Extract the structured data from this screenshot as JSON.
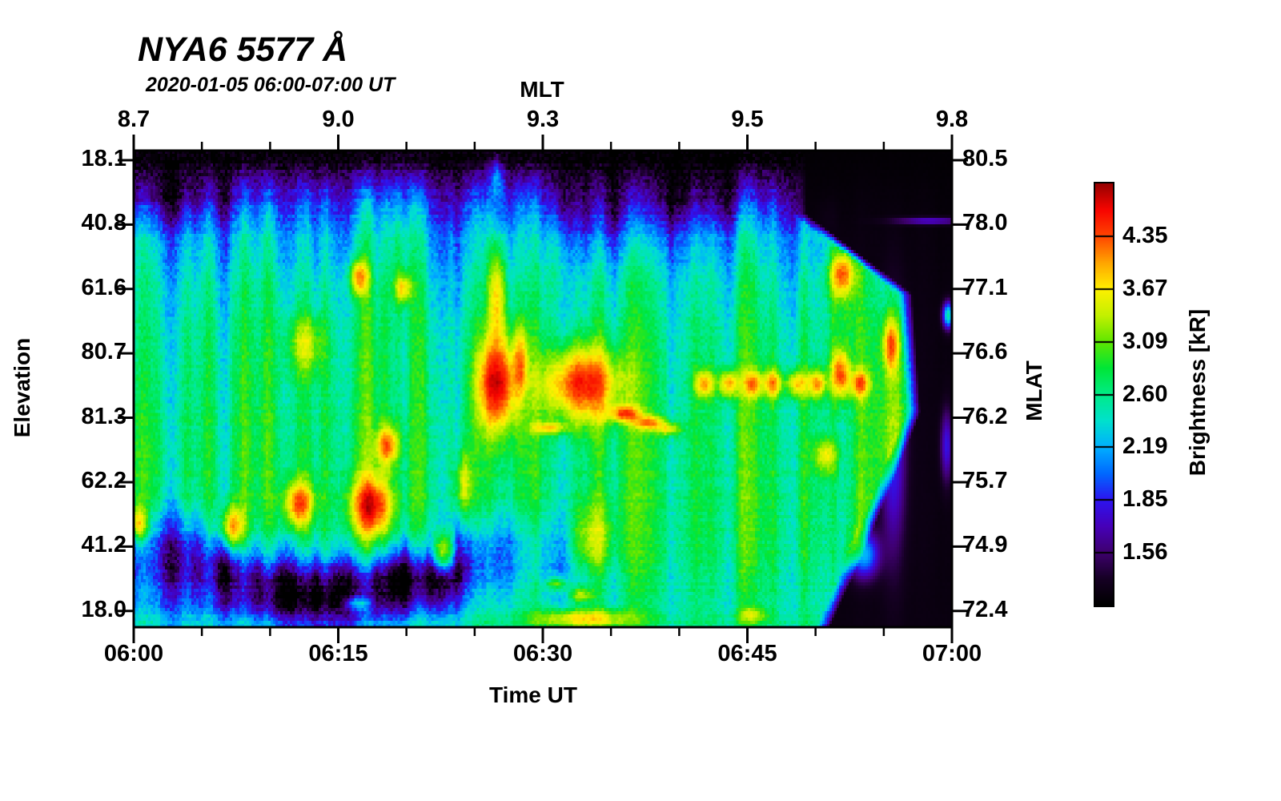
{
  "title": "NYA6 5577 Å",
  "subtitle": "2020-01-05 06:00-07:00 UT",
  "axes": {
    "top": {
      "label": "MLT",
      "major": [
        {
          "f": 0,
          "t": "8.7"
        },
        {
          "f": 0.25,
          "t": "9.0"
        },
        {
          "f": 0.5,
          "t": "9.3"
        },
        {
          "f": 0.75,
          "t": "9.5"
        },
        {
          "f": 1,
          "t": "9.8"
        }
      ],
      "minor": [
        0.0833,
        0.1667,
        0.3333,
        0.4167,
        0.5833,
        0.6667,
        0.8333,
        0.9167
      ]
    },
    "bottom": {
      "label": "Time UT",
      "major": [
        {
          "f": 0,
          "t": "06:00"
        },
        {
          "f": 0.25,
          "t": "06:15"
        },
        {
          "f": 0.5,
          "t": "06:30"
        },
        {
          "f": 0.75,
          "t": "06:45"
        },
        {
          "f": 1,
          "t": "07:00"
        }
      ],
      "minor": [
        0.0833,
        0.1667,
        0.3333,
        0.4167,
        0.5833,
        0.6667,
        0.8333,
        0.9167
      ]
    },
    "left": {
      "label": "Elevation",
      "major": [
        {
          "f": 0.0202,
          "t": "18.1"
        },
        {
          "f": 0.1553,
          "t": "40.8"
        },
        {
          "f": 0.2904,
          "t": "61.6"
        },
        {
          "f": 0.4255,
          "t": "80.7"
        },
        {
          "f": 0.5606,
          "t": "81.3"
        },
        {
          "f": 0.6957,
          "t": "62.2"
        },
        {
          "f": 0.8308,
          "t": "41.2"
        },
        {
          "f": 0.9659,
          "t": "18.0"
        }
      ]
    },
    "right": {
      "label": "MLAT",
      "major": [
        {
          "f": 0.0202,
          "t": "80.5"
        },
        {
          "f": 0.1553,
          "t": "78.0"
        },
        {
          "f": 0.2904,
          "t": "77.1"
        },
        {
          "f": 0.4255,
          "t": "76.6"
        },
        {
          "f": 0.5606,
          "t": "76.2"
        },
        {
          "f": 0.6957,
          "t": "75.7"
        },
        {
          "f": 0.8308,
          "t": "74.9"
        },
        {
          "f": 0.9659,
          "t": "72.4"
        }
      ]
    }
  },
  "colorbar": {
    "label": "Brightness [kR]",
    "ticks": [
      "4.35",
      "3.67",
      "3.09",
      "2.60",
      "2.19",
      "1.85",
      "1.56"
    ],
    "scale": "log"
  },
  "chart_data": {
    "type": "heatmap",
    "title": "NYA6 5577 Å",
    "subtitle": "2020-01-05 06:00-07:00 UT",
    "x_axis": {
      "label": "Time UT",
      "ticks": [
        "06:00",
        "06:15",
        "06:30",
        "06:45",
        "07:00"
      ],
      "mlt_ticks": [
        "8.7",
        "9.0",
        "9.3",
        "9.5",
        "9.8"
      ]
    },
    "y_axis": {
      "left_label": "Elevation",
      "left_ticks": [
        18.1,
        40.8,
        61.6,
        80.7,
        81.3,
        62.2,
        41.2,
        18.0
      ],
      "right_label": "MLAT",
      "right_ticks": [
        80.5,
        78.0,
        77.1,
        76.6,
        76.2,
        75.7,
        74.9,
        72.4
      ]
    },
    "value_axis": {
      "label": "Brightness [kR]",
      "tick_values": [
        1.56,
        1.85,
        2.19,
        2.6,
        3.09,
        3.67,
        4.35
      ],
      "scale": "log",
      "range": [
        1.315,
        5.17
      ]
    },
    "colormap": [
      [
        0,
        0,
        0,
        0
      ],
      [
        0.0625,
        22,
        0,
        36
      ],
      [
        0.125,
        62,
        0,
        110
      ],
      [
        0.1875,
        70,
        0,
        185
      ],
      [
        0.25,
        45,
        20,
        240
      ],
      [
        0.3125,
        0,
        105,
        255
      ],
      [
        0.375,
        0,
        175,
        255
      ],
      [
        0.4375,
        0,
        225,
        205
      ],
      [
        0.5,
        0,
        235,
        135
      ],
      [
        0.5625,
        0,
        230,
        55
      ],
      [
        0.625,
        95,
        230,
        0
      ],
      [
        0.6875,
        195,
        240,
        0
      ],
      [
        0.75,
        255,
        240,
        0
      ],
      [
        0.8125,
        255,
        165,
        0
      ],
      [
        0.875,
        255,
        70,
        0
      ],
      [
        0.9375,
        248,
        5,
        0
      ],
      [
        1,
        150,
        0,
        0
      ]
    ],
    "field": {
      "grid": [
        341,
        149
      ],
      "base": [
        [
          0,
          1.32
        ],
        [
          0.02,
          1.38
        ],
        [
          0.055,
          1.62
        ],
        [
          0.1,
          1.92
        ],
        [
          0.14,
          2.12
        ],
        [
          0.2,
          2.3
        ],
        [
          0.28,
          2.48
        ],
        [
          0.38,
          2.62
        ],
        [
          0.5,
          2.7
        ],
        [
          0.62,
          2.74
        ],
        [
          0.75,
          2.78
        ],
        [
          0.85,
          2.72
        ],
        [
          0.93,
          2.62
        ],
        [
          0.97,
          2.6
        ],
        [
          1,
          2.66
        ]
      ],
      "noise": {
        "seed": 77,
        "col_amp": 0.5,
        "col_sin": [
          [
            0.16,
            92,
            0.7
          ],
          [
            0.12,
            41,
            2.1
          ],
          [
            0.1,
            173,
            4.2
          ]
        ],
        "row_amp": 0.1,
        "pixel_amp": 0.22
      },
      "topleft": {
        "x_extent": 0.19,
        "y_center": 0.1,
        "y_sigma": 0.095,
        "strength": 2.1
      },
      "left_edge": {
        "x_extent": 0.05,
        "strength": 4.8,
        "y_center": 0.4,
        "y_var": 0.045
      },
      "wave": {
        "amp": 0.8,
        "y_center": 0.895,
        "y_amp": 0.05,
        "freq": 14,
        "phase": 1.2,
        "sigma": 0.065,
        "taper_start": 0.4,
        "taper_len": 0.22
      },
      "corner": {
        "amp": 0.35,
        "y": 0.95,
        "sigma": 0.07,
        "x_extent": 0.32
      },
      "dark": [
        [
          0,
          0.805
        ],
        [
          0.13,
          0.805
        ],
        [
          0.3,
          0.935
        ],
        [
          0.55,
          0.945
        ],
        [
          0.85,
          0.875
        ],
        [
          1,
          0.835
        ]
      ],
      "dark_fade": 0.018,
      "features": [
        [
          0.444,
          0.49,
          0.016,
          0.065,
          2.25
        ],
        [
          0.444,
          0.3,
          0.0075,
          0.075,
          1.25
        ],
        [
          0.444,
          0.055,
          0.006,
          0.03,
          0.55
        ],
        [
          0.547,
          0.49,
          0.032,
          0.052,
          2.05
        ],
        [
          0.6,
          0.552,
          0.013,
          0.011,
          1.5
        ],
        [
          0.63,
          0.572,
          0.012,
          0.01,
          1.35
        ],
        [
          0.655,
          0.585,
          0.01,
          0.009,
          1.1
        ],
        [
          0.508,
          0.583,
          0.016,
          0.008,
          1.1
        ],
        [
          0.473,
          0.44,
          0.006,
          0.05,
          1.1
        ],
        [
          0.119,
          0.793,
          0.01,
          0.03,
          1.65
        ],
        [
          0.201,
          0.743,
          0.012,
          0.033,
          1.7
        ],
        [
          0.29,
          0.748,
          0.017,
          0.042,
          1.95
        ],
        [
          0.31,
          0.619,
          0.01,
          0.028,
          1.5
        ],
        [
          0.378,
          0.845,
          0.009,
          0.03,
          1.6
        ],
        [
          0.275,
          0.264,
          0.008,
          0.026,
          1.5
        ],
        [
          0.329,
          0.289,
          0.007,
          0.021,
          1.2
        ],
        [
          0.209,
          0.407,
          0.015,
          0.042,
          0.85
        ],
        [
          0.005,
          0.785,
          0.007,
          0.024,
          1.35
        ],
        [
          0.867,
          0.256,
          0.011,
          0.032,
          1.6
        ],
        [
          0.85,
          0.138,
          0.009,
          0.028,
          1.0
        ],
        [
          0.867,
          0.3,
          0.012,
          0.1,
          0.55
        ],
        [
          0.698,
          0.49,
          0.008,
          0.02,
          1.35
        ],
        [
          0.728,
          0.49,
          0.008,
          0.02,
          1.5
        ],
        [
          0.757,
          0.49,
          0.008,
          0.02,
          1.3
        ],
        [
          0.782,
          0.49,
          0.008,
          0.02,
          1.45
        ],
        [
          0.811,
          0.49,
          0.008,
          0.02,
          1.3
        ],
        [
          0.836,
          0.49,
          0.008,
          0.02,
          1.5
        ],
        [
          0.865,
          0.47,
          0.008,
          0.035,
          1.8
        ],
        [
          0.889,
          0.49,
          0.008,
          0.02,
          1.45
        ],
        [
          0.927,
          0.407,
          0.0065,
          0.038,
          1.55
        ],
        [
          0.847,
          0.642,
          0.01,
          0.025,
          1.0
        ],
        [
          0.551,
          0.985,
          0.04,
          0.014,
          1.25
        ],
        [
          0.547,
          0.936,
          0.011,
          0.011,
          0.9
        ],
        [
          0.272,
          0.953,
          0.011,
          0.01,
          0.8
        ],
        [
          0.518,
          0.911,
          0.009,
          0.01,
          0.85
        ],
        [
          0.757,
          0.978,
          0.013,
          0.012,
          0.75
        ],
        [
          0.56,
          0.82,
          0.018,
          0.05,
          0.8
        ],
        [
          0.403,
          0.7,
          0.007,
          0.045,
          0.9
        ],
        [
          0.33,
          0.9,
          0.05,
          0.045,
          -0.55
        ],
        [
          0.2,
          0.93,
          0.06,
          0.05,
          -0.35
        ],
        [
          0.58,
          0.13,
          0.05,
          0.06,
          -0.35
        ],
        [
          0.7,
          0.1,
          0.06,
          0.05,
          -0.3
        ],
        [
          0.325,
          0.2,
          0.01,
          0.1,
          0.45
        ],
        [
          0.518,
          0.22,
          0.009,
          0.08,
          0.4
        ]
      ],
      "post_features": [
        [
          0.93,
          0.6,
          0.01,
          0.16,
          0.55
        ],
        [
          0.894,
          0.85,
          0.012,
          0.032,
          0.85
        ],
        [
          0.975,
          0.145,
          0.03,
          0.005,
          0.42
        ],
        [
          0.997,
          0.345,
          0.0045,
          0.018,
          1.15
        ],
        [
          0.995,
          0.62,
          0.005,
          0.05,
          0.45
        ]
      ],
      "clamp": [
        1.3,
        5.16
      ]
    }
  }
}
